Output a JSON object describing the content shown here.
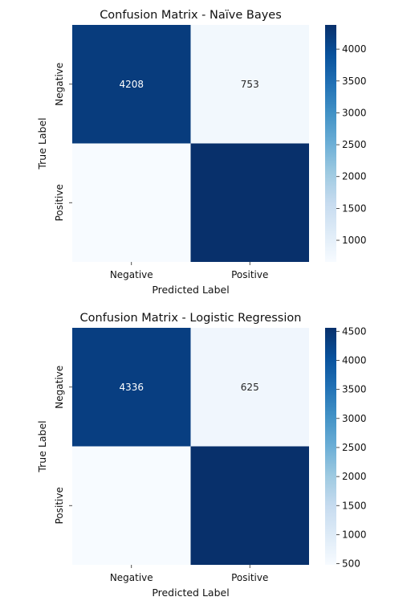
{
  "chart_data": [
    {
      "type": "heatmap",
      "title": "Confusion Matrix - Naïve Bayes",
      "xlabel": "Predicted Label",
      "ylabel": "True Label",
      "x_categories": [
        "Negative",
        "Positive"
      ],
      "y_categories": [
        "Negative",
        "Positive"
      ],
      "values": [
        [
          4208,
          753
        ],
        [
          660,
          4380
        ]
      ],
      "cell_labels": [
        [
          "4208",
          "753"
        ],
        [
          "",
          ""
        ]
      ],
      "colorbar": {
        "min": 660,
        "max": 4380,
        "ticks": [
          1000,
          1500,
          2000,
          2500,
          3000,
          3500,
          4000
        ],
        "colormap": "Blues"
      }
    },
    {
      "type": "heatmap",
      "title": "Confusion Matrix - Logistic Regression",
      "xlabel": "Predicted Label",
      "ylabel": "True Label",
      "x_categories": [
        "Negative",
        "Positive"
      ],
      "y_categories": [
        "Negative",
        "Positive"
      ],
      "values": [
        [
          4336,
          625
        ],
        [
          480,
          4560
        ]
      ],
      "cell_labels": [
        [
          "4336",
          "625"
        ],
        [
          "",
          ""
        ]
      ],
      "colorbar": {
        "min": 480,
        "max": 4560,
        "ticks": [
          500,
          1000,
          1500,
          2000,
          2500,
          3000,
          3500,
          4000,
          4500
        ],
        "colormap": "Blues"
      }
    }
  ]
}
